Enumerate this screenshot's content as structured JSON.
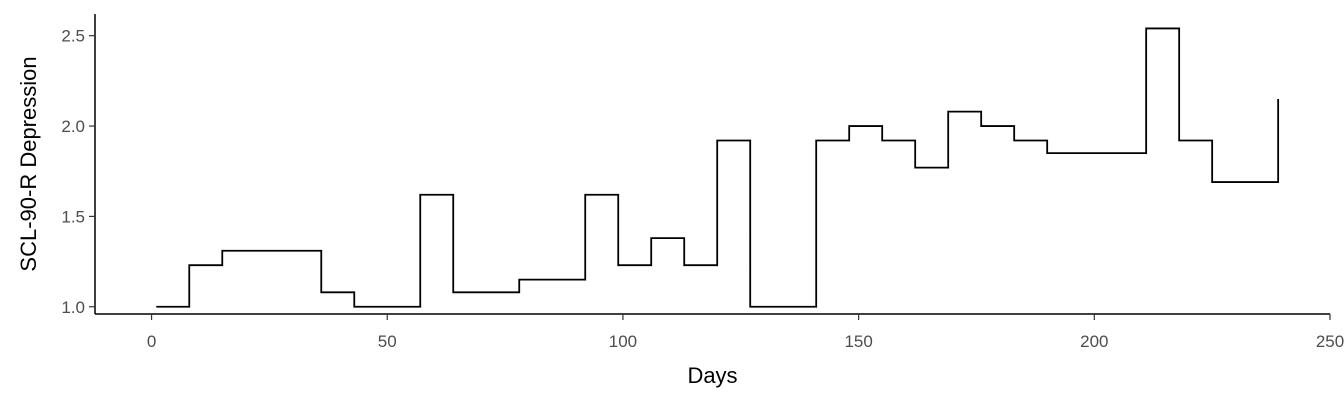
{
  "chart_data": {
    "type": "line",
    "step": "hv",
    "title": "",
    "xlabel": "Days",
    "ylabel": "SCL-90-R Depression",
    "xlim": [
      -12,
      250
    ],
    "ylim": [
      0.96,
      2.62
    ],
    "x_ticks": [
      0,
      50,
      100,
      150,
      200,
      250
    ],
    "y_ticks": [
      1.0,
      1.5,
      2.0,
      2.5
    ],
    "x_tick_labels": [
      "0",
      "50",
      "100",
      "150",
      "200",
      "250"
    ],
    "y_tick_labels": [
      "1.0",
      "1.5",
      "2.0",
      "2.5"
    ],
    "grid": false,
    "legend": "none",
    "line_color": "#000000",
    "series": [
      {
        "x": [
          1,
          8,
          15,
          36,
          43,
          57,
          64,
          78,
          92,
          99,
          106,
          113,
          120,
          127,
          141,
          148,
          155,
          162,
          169,
          176,
          183,
          190,
          211,
          218,
          225,
          239
        ],
        "y": [
          1.0,
          1.23,
          1.31,
          1.08,
          1.0,
          1.62,
          1.08,
          1.15,
          1.62,
          1.23,
          1.38,
          1.23,
          1.92,
          1.0,
          1.92,
          2.0,
          1.92,
          1.77,
          2.08,
          2.0,
          1.92,
          1.85,
          2.54,
          1.92,
          1.69,
          2.15
        ]
      }
    ]
  }
}
